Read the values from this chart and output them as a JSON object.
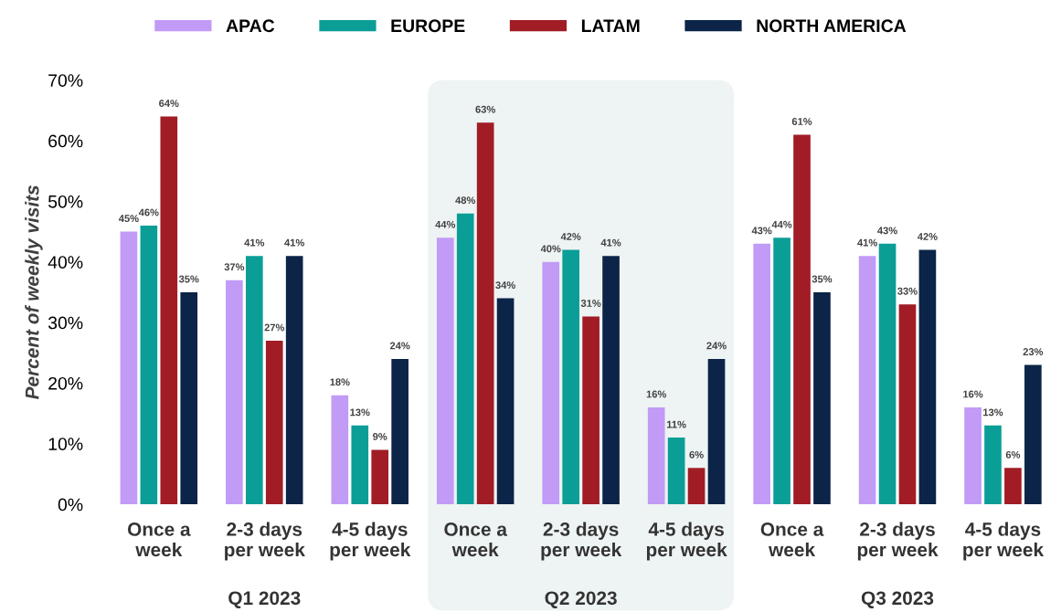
{
  "chart_data": {
    "type": "bar",
    "ylabel": "Percent of weekly visits",
    "categories": [
      "Once a\nweek",
      "2-3 days\nper week",
      "4-5 days\nper week",
      "Once a\nweek",
      "2-3 days\nper week",
      "4-5 days\nper week",
      "Once a\nweek",
      "2-3 days\nper week",
      "4-5 days\nper week"
    ],
    "series": [
      {
        "name": "APAC",
        "color": "#c19bf6",
        "values": [
          45,
          37,
          18,
          44,
          40,
          16,
          43,
          41,
          16
        ],
        "value_labels": [
          "45%",
          "37%",
          "18%",
          "44%",
          "40%",
          "16%",
          "43%",
          "41%",
          "16%"
        ]
      },
      {
        "name": "EUROPE",
        "color": "#0a9e96",
        "values": [
          46,
          41,
          13,
          48,
          42,
          11,
          44,
          43,
          13
        ],
        "value_labels": [
          "46%",
          "41%",
          "13%",
          "48%",
          "42%",
          "11%",
          "44%",
          "43%",
          "13%"
        ]
      },
      {
        "name": "LATAM",
        "color": "#a11c25",
        "values": [
          64,
          27,
          9,
          63,
          31,
          6,
          61,
          33,
          6
        ],
        "value_labels": [
          "64%",
          "27%",
          "9%",
          "63%",
          "31%",
          "6%",
          "61%",
          "33%",
          "6%"
        ]
      },
      {
        "name": "NORTH AMERICA",
        "color": "#0b2447",
        "values": [
          35,
          41,
          24,
          34,
          41,
          24,
          35,
          42,
          23
        ],
        "value_labels": [
          "35%",
          "41%",
          "24%",
          "34%",
          "41%",
          "24%",
          "35%",
          "42%",
          "23%"
        ]
      }
    ],
    "ylim": [
      0,
      70
    ],
    "yticks": [
      {
        "value": 0,
        "label": "0%"
      },
      {
        "value": 10,
        "label": "10%"
      },
      {
        "value": 20,
        "label": "20%"
      },
      {
        "value": 30,
        "label": "30%"
      },
      {
        "value": 40,
        "label": "40%"
      },
      {
        "value": 50,
        "label": "50%"
      },
      {
        "value": 60,
        "label": "60%"
      },
      {
        "value": 70,
        "label": "70%"
      }
    ],
    "annotations": [
      "Q1 2023",
      "Q2 2023",
      "Q3 2023"
    ],
    "grid": false,
    "legend": "top"
  }
}
